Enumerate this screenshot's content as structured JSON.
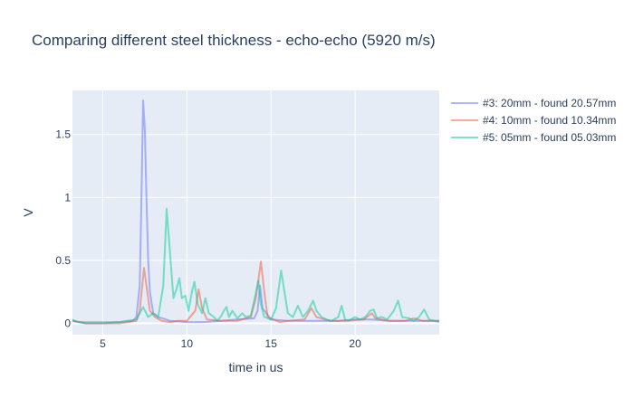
{
  "chart_data": {
    "type": "line",
    "title": "Comparing different steel thickness - echo-echo (5920 m/s)",
    "xlabel": "time in us",
    "ylabel": "V",
    "xlim": [
      3.2,
      25.0
    ],
    "ylim": [
      -0.09,
      1.85
    ],
    "x_ticks": [
      5,
      10,
      15,
      20
    ],
    "x_tick_labels": [
      "5",
      "10",
      "15",
      "20"
    ],
    "y_ticks": [
      0,
      0.5,
      1,
      1.5
    ],
    "y_tick_labels": [
      "0",
      "0.5",
      "1",
      "1.5"
    ],
    "grid": true,
    "legend_position": "top-right",
    "series": [
      {
        "name": "#3: 20mm - found 20.57mm",
        "color": "#636efa",
        "points": [
          [
            3.2,
            0.02
          ],
          [
            4.0,
            0.0
          ],
          [
            5.0,
            0.0
          ],
          [
            6.0,
            0.01
          ],
          [
            6.8,
            0.02
          ],
          [
            7.0,
            0.05
          ],
          [
            7.2,
            0.3
          ],
          [
            7.3,
            1.0
          ],
          [
            7.4,
            1.77
          ],
          [
            7.5,
            1.55
          ],
          [
            7.6,
            1.0
          ],
          [
            7.7,
            0.5
          ],
          [
            7.8,
            0.25
          ],
          [
            8.0,
            0.08
          ],
          [
            8.3,
            0.05
          ],
          [
            9.0,
            0.02
          ],
          [
            10.0,
            0.01
          ],
          [
            11.0,
            0.01
          ],
          [
            12.0,
            0.02
          ],
          [
            13.0,
            0.03
          ],
          [
            14.0,
            0.04
          ],
          [
            14.2,
            0.1
          ],
          [
            14.35,
            0.3
          ],
          [
            14.5,
            0.12
          ],
          [
            15.0,
            0.03
          ],
          [
            16.0,
            0.02
          ],
          [
            17.0,
            0.02
          ],
          [
            18.0,
            0.02
          ],
          [
            19.0,
            0.02
          ],
          [
            20.0,
            0.03
          ],
          [
            21.0,
            0.03
          ],
          [
            22.0,
            0.02
          ],
          [
            23.0,
            0.02
          ],
          [
            24.0,
            0.02
          ],
          [
            25.0,
            0.02
          ]
        ]
      },
      {
        "name": "#4: 10mm - found 10.34mm",
        "color": "#ef553b",
        "points": [
          [
            3.2,
            0.02
          ],
          [
            4.0,
            0.0
          ],
          [
            5.0,
            0.0
          ],
          [
            6.0,
            0.0
          ],
          [
            7.0,
            0.02
          ],
          [
            7.2,
            0.1
          ],
          [
            7.35,
            0.3
          ],
          [
            7.45,
            0.44
          ],
          [
            7.6,
            0.3
          ],
          [
            7.8,
            0.1
          ],
          [
            8.1,
            0.05
          ],
          [
            8.5,
            0.02
          ],
          [
            9.0,
            0.01
          ],
          [
            9.5,
            0.02
          ],
          [
            10.0,
            0.02
          ],
          [
            10.5,
            0.1
          ],
          [
            10.7,
            0.27
          ],
          [
            10.9,
            0.12
          ],
          [
            11.2,
            0.03
          ],
          [
            12.0,
            0.02
          ],
          [
            13.0,
            0.02
          ],
          [
            13.8,
            0.05
          ],
          [
            14.1,
            0.2
          ],
          [
            14.4,
            0.49
          ],
          [
            14.6,
            0.25
          ],
          [
            14.8,
            0.05
          ],
          [
            15.5,
            0.01
          ],
          [
            16.0,
            0.02
          ],
          [
            17.0,
            0.03
          ],
          [
            17.4,
            0.12
          ],
          [
            17.7,
            0.05
          ],
          [
            18.5,
            0.02
          ],
          [
            19.5,
            0.02
          ],
          [
            20.5,
            0.03
          ],
          [
            21.0,
            0.08
          ],
          [
            21.2,
            0.04
          ],
          [
            22.0,
            0.02
          ],
          [
            23.0,
            0.02
          ],
          [
            23.5,
            0.04
          ],
          [
            24.0,
            0.02
          ],
          [
            25.0,
            0.02
          ]
        ]
      },
      {
        "name": "#5: 05mm - found 05.03mm",
        "color": "#00cc96",
        "points": [
          [
            3.2,
            0.03
          ],
          [
            3.5,
            0.01
          ],
          [
            4.0,
            0.01
          ],
          [
            5.0,
            0.01
          ],
          [
            6.0,
            0.01
          ],
          [
            7.0,
            0.03
          ],
          [
            7.4,
            0.13
          ],
          [
            7.7,
            0.05
          ],
          [
            8.0,
            0.08
          ],
          [
            8.3,
            0.05
          ],
          [
            8.6,
            0.3
          ],
          [
            8.8,
            0.91
          ],
          [
            9.0,
            0.55
          ],
          [
            9.2,
            0.2
          ],
          [
            9.4,
            0.28
          ],
          [
            9.55,
            0.36
          ],
          [
            9.7,
            0.2
          ],
          [
            9.9,
            0.22
          ],
          [
            10.1,
            0.1
          ],
          [
            10.3,
            0.25
          ],
          [
            10.45,
            0.33
          ],
          [
            10.65,
            0.15
          ],
          [
            10.9,
            0.08
          ],
          [
            11.1,
            0.2
          ],
          [
            11.3,
            0.08
          ],
          [
            11.6,
            0.05
          ],
          [
            11.8,
            0.02
          ],
          [
            12.0,
            0.05
          ],
          [
            12.2,
            0.1
          ],
          [
            12.35,
            0.13
          ],
          [
            12.5,
            0.05
          ],
          [
            12.7,
            0.1
          ],
          [
            13.0,
            0.04
          ],
          [
            13.3,
            0.08
          ],
          [
            13.5,
            0.05
          ],
          [
            13.8,
            0.06
          ],
          [
            14.0,
            0.18
          ],
          [
            14.25,
            0.34
          ],
          [
            14.4,
            0.15
          ],
          [
            14.6,
            0.05
          ],
          [
            15.0,
            0.03
          ],
          [
            15.3,
            0.12
          ],
          [
            15.6,
            0.42
          ],
          [
            15.8,
            0.25
          ],
          [
            16.0,
            0.08
          ],
          [
            16.3,
            0.05
          ],
          [
            16.6,
            0.14
          ],
          [
            16.9,
            0.05
          ],
          [
            17.2,
            0.1
          ],
          [
            17.5,
            0.18
          ],
          [
            17.7,
            0.1
          ],
          [
            18.0,
            0.05
          ],
          [
            18.3,
            0.03
          ],
          [
            18.6,
            0.02
          ],
          [
            19.0,
            0.05
          ],
          [
            19.2,
            0.14
          ],
          [
            19.4,
            0.03
          ],
          [
            19.6,
            0.02
          ],
          [
            20.0,
            0.05
          ],
          [
            20.3,
            0.03
          ],
          [
            20.6,
            0.05
          ],
          [
            20.9,
            0.1
          ],
          [
            21.1,
            0.11
          ],
          [
            21.3,
            0.04
          ],
          [
            21.6,
            0.05
          ],
          [
            21.9,
            0.03
          ],
          [
            22.3,
            0.1
          ],
          [
            22.55,
            0.18
          ],
          [
            22.8,
            0.05
          ],
          [
            23.2,
            0.04
          ],
          [
            23.5,
            0.02
          ],
          [
            23.8,
            0.05
          ],
          [
            24.1,
            0.11
          ],
          [
            24.4,
            0.03
          ],
          [
            24.7,
            0.02
          ],
          [
            25.0,
            0.01
          ]
        ]
      }
    ]
  }
}
